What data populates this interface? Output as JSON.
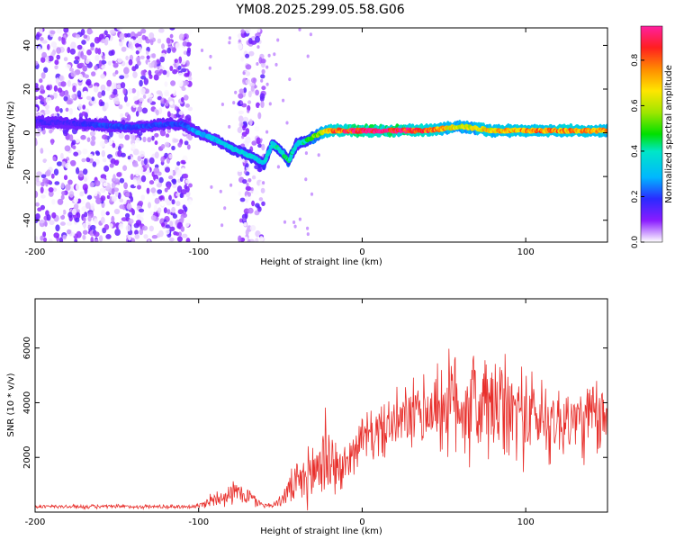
{
  "title": "YM08.2025.299.05.58.G06",
  "colors": {
    "snr_line": "#e8302c",
    "axes": "#000000",
    "background": "#ffffff"
  },
  "chart_data": [
    {
      "type": "heatmap",
      "title": "YM08.2025.299.05.58.G06",
      "xlabel": "Height of straight line (km)",
      "ylabel": "Frequency (Hz)",
      "xlim": [
        -200,
        150
      ],
      "ylim": [
        -50,
        48
      ],
      "xticks": [
        -200,
        -100,
        0,
        100
      ],
      "xtick_labels": [
        "-200",
        "-100",
        "0",
        "100"
      ],
      "yticks": [
        -40,
        -20,
        0,
        20,
        40
      ],
      "ytick_labels": [
        "-40",
        "-20",
        "0",
        "20",
        "40"
      ],
      "colorbar": {
        "label": "Normalized spectral amplitude",
        "range": [
          0,
          0.95
        ],
        "ticks": [
          0.0,
          0.2,
          0.4,
          0.6,
          0.8
        ],
        "tick_labels": [
          "0.0",
          "0.2",
          "0.4",
          "0.6",
          "0.8"
        ],
        "colormap": "rainbow"
      },
      "ridge": {
        "x": [
          -200,
          -180,
          -160,
          -140,
          -120,
          -110,
          -100,
          -90,
          -80,
          -70,
          -60,
          -55,
          -50,
          -45,
          -40,
          -35,
          -30,
          -25,
          -20,
          -10,
          0,
          20,
          40,
          60,
          80,
          100,
          120,
          150
        ],
        "y": [
          5,
          4.5,
          3.5,
          2.5,
          4,
          4,
          0,
          -3,
          -7,
          -10,
          -14,
          -5,
          -8,
          -13,
          -5,
          -4,
          -2,
          0,
          1,
          1,
          1,
          1,
          1,
          3,
          1,
          1,
          1,
          1
        ],
        "amplitude": [
          0.15,
          0.15,
          0.2,
          0.2,
          0.2,
          0.2,
          0.3,
          0.3,
          0.35,
          0.35,
          0.35,
          0.35,
          0.4,
          0.45,
          0.35,
          0.4,
          0.5,
          0.6,
          0.75,
          0.85,
          0.9,
          0.9,
          0.8,
          0.6,
          0.7,
          0.75,
          0.75,
          0.7
        ]
      },
      "noise_scatter": {
        "x_ranges": [
          [
            -200,
            -105
          ],
          [
            -75,
            -60
          ]
        ],
        "y_range": [
          -50,
          48
        ],
        "amplitude_range": [
          0.0,
          0.15
        ]
      }
    },
    {
      "type": "line",
      "title": "",
      "xlabel": "Height of straight line (km)",
      "ylabel": "SNR (10 * v/v)",
      "xlim": [
        -200,
        150
      ],
      "ylim": [
        0,
        7800
      ],
      "xticks": [
        -200,
        -100,
        0,
        100
      ],
      "xtick_labels": [
        "-200",
        "-100",
        "0",
        "100"
      ],
      "yticks": [
        2000,
        4000,
        6000
      ],
      "ytick_labels": [
        "2000",
        "4000",
        "6000"
      ],
      "series": [
        {
          "name": "SNR",
          "x": [
            -200,
            -180,
            -160,
            -140,
            -120,
            -110,
            -100,
            -90,
            -80,
            -75,
            -70,
            -65,
            -60,
            -55,
            -50,
            -45,
            -40,
            -35,
            -30,
            -27,
            -25,
            -22,
            -20,
            -18,
            -15,
            -12,
            -10,
            -5,
            0,
            5,
            10,
            15,
            20,
            25,
            30,
            35,
            40,
            45,
            50,
            55,
            60,
            65,
            70,
            75,
            80,
            85,
            90,
            95,
            100,
            105,
            110,
            115,
            120,
            125,
            130,
            135,
            140,
            145,
            150
          ],
          "mean": [
            200,
            200,
            200,
            200,
            200,
            200,
            220,
            500,
            700,
            700,
            600,
            400,
            250,
            250,
            400,
            800,
            1000,
            1200,
            1400,
            1700,
            2000,
            2200,
            1900,
            1800,
            1600,
            1400,
            1800,
            2300,
            2700,
            2800,
            2900,
            3100,
            3200,
            3400,
            3500,
            3600,
            3700,
            3800,
            3900,
            4000,
            4000,
            3900,
            3900,
            3800,
            3800,
            3700,
            3600,
            3700,
            3600,
            3500,
            3400,
            3400,
            3300,
            3300,
            3400,
            3300,
            3400,
            3400,
            3300
          ],
          "spread": [
            80,
            80,
            80,
            80,
            80,
            80,
            100,
            350,
            450,
            450,
            400,
            250,
            100,
            100,
            200,
            600,
            800,
            1000,
            1300,
            1800,
            2200,
            2400,
            1500,
            1200,
            1000,
            900,
            900,
            800,
            900,
            1000,
            1000,
            1100,
            1200,
            1200,
            1300,
            1400,
            1500,
            1700,
            1900,
            2100,
            2200,
            2300,
            2300,
            2300,
            2200,
            2100,
            2000,
            2000,
            1900,
            1800,
            1700,
            1600,
            1500,
            1500,
            1500,
            1500,
            1600,
            1600,
            1500
          ]
        }
      ]
    }
  ]
}
